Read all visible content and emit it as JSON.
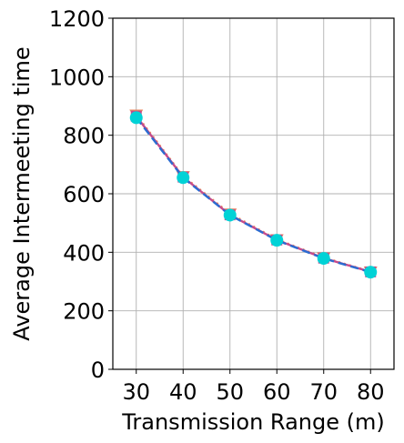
{
  "chart_data": {
    "type": "line",
    "xlabel": "Transmission Range (m)",
    "ylabel": "Average Intermeeting time",
    "x": [
      30,
      40,
      50,
      60,
      70,
      80
    ],
    "xticks": [
      "30",
      "40",
      "50",
      "60",
      "70",
      "80"
    ],
    "yticks": [
      "0",
      "200",
      "400",
      "600",
      "800",
      "1000",
      "1200"
    ],
    "xlim": [
      25,
      85
    ],
    "ylim": [
      0,
      1200
    ],
    "grid": true,
    "legend": "none",
    "series": [
      {
        "color": "#e8845c",
        "marker": "triangle-down",
        "linestyle": "dotted",
        "values": [
          870,
          660,
          532,
          444,
          382,
          334
        ]
      },
      {
        "color": "#c64b8c",
        "marker": "square",
        "linestyle": "solid",
        "values": [
          865,
          657,
          528,
          442,
          380,
          333
        ]
      },
      {
        "color": "#2b6cd1",
        "marker": "circle",
        "linestyle": "dashed",
        "values": [
          860,
          655,
          527,
          441,
          379,
          332
        ]
      },
      {
        "color": "#00d2d6",
        "marker": "circle",
        "linestyle": "none",
        "values": [
          860,
          655,
          527,
          441,
          379,
          332
        ]
      }
    ]
  }
}
